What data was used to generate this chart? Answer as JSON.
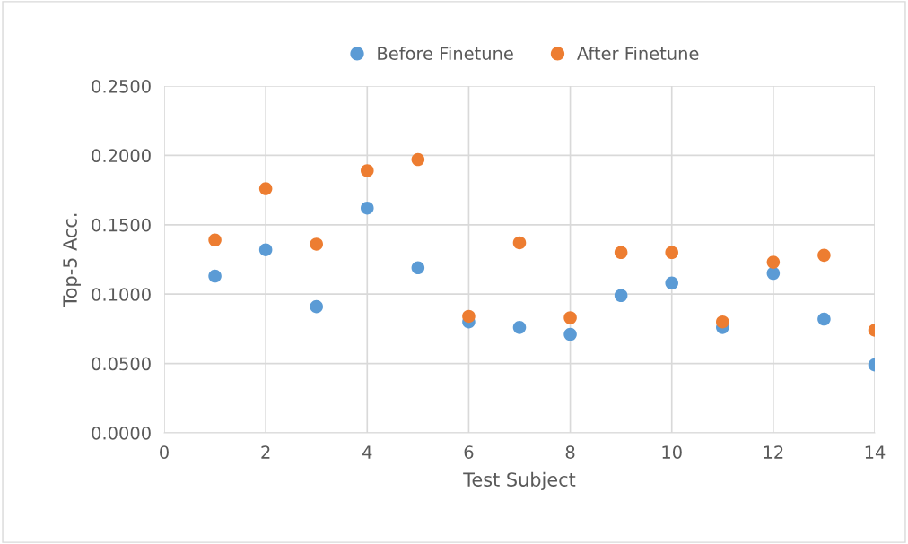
{
  "chart_data": {
    "type": "scatter",
    "xlabel": "Test Subject",
    "ylabel": "Top-5 Acc.",
    "x": [
      1,
      2,
      3,
      4,
      5,
      6,
      7,
      8,
      9,
      10,
      11,
      12,
      13,
      14
    ],
    "series": [
      {
        "name": "Before Finetune",
        "color": "#5b9bd5",
        "values": [
          0.113,
          0.132,
          0.091,
          0.162,
          0.119,
          0.08,
          0.076,
          0.071,
          0.099,
          0.108,
          0.076,
          0.115,
          0.082,
          0.049
        ]
      },
      {
        "name": "After Finetune",
        "color": "#ed7d31",
        "values": [
          0.139,
          0.176,
          0.136,
          0.189,
          0.197,
          0.084,
          0.137,
          0.083,
          0.13,
          0.13,
          0.08,
          0.123,
          0.128,
          0.074
        ]
      }
    ],
    "xlim": [
      0,
      14
    ],
    "xticks": [
      0,
      2,
      4,
      6,
      8,
      10,
      12,
      14
    ],
    "ylim": [
      0,
      0.25
    ],
    "yticks": [
      {
        "value": 0,
        "label": "0.0000"
      },
      {
        "value": 0.05,
        "label": "0.0500"
      },
      {
        "value": 0.1,
        "label": "0.1000"
      },
      {
        "value": 0.15,
        "label": "0.1500"
      },
      {
        "value": 0.2,
        "label": "0.2000"
      },
      {
        "value": 0.25,
        "label": "0.2500"
      }
    ],
    "grid": true,
    "legend": "top",
    "marker": "circle"
  }
}
